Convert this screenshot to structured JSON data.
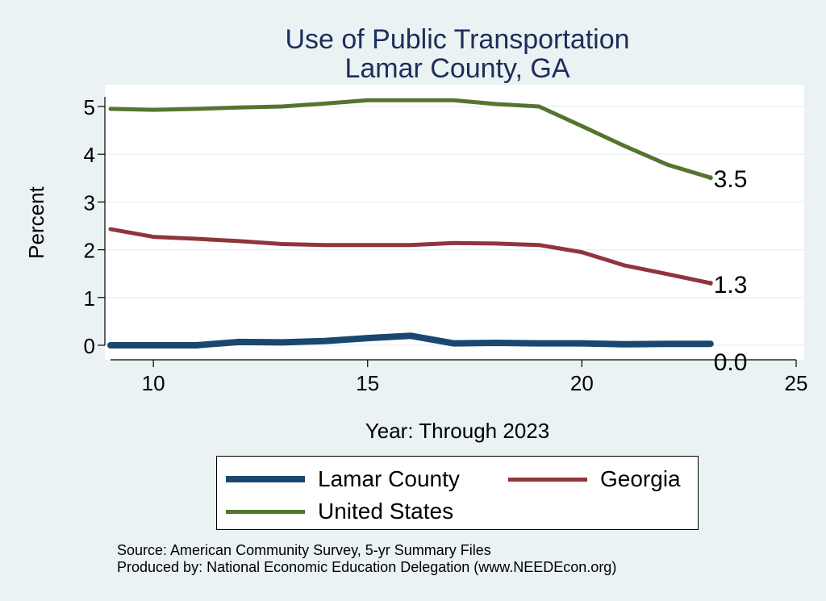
{
  "chart_data": {
    "type": "line",
    "title": "Use of Public Transportation",
    "subtitle": "Lamar County, GA",
    "xlabel": "Year: Through 2023",
    "ylabel": "Percent",
    "xlim": [
      9,
      25
    ],
    "ylim": [
      0,
      5.2
    ],
    "xticks": [
      10,
      15,
      20,
      25
    ],
    "yticks": [
      0,
      1,
      2,
      3,
      4,
      5
    ],
    "grid": true,
    "legend_position": "bottom",
    "x": [
      9,
      10,
      11,
      12,
      13,
      14,
      15,
      16,
      17,
      18,
      19,
      20,
      21,
      22,
      23
    ],
    "series": [
      {
        "name": "Lamar County",
        "color": "#1a476f",
        "values": [
          0.0,
          0.0,
          0.0,
          0.07,
          0.06,
          0.09,
          0.15,
          0.2,
          0.04,
          0.05,
          0.04,
          0.04,
          0.02,
          0.03,
          0.03
        ],
        "end_label": "0.0"
      },
      {
        "name": "Georgia",
        "color": "#90353b",
        "values": [
          2.43,
          2.27,
          2.23,
          2.18,
          2.12,
          2.1,
          2.1,
          2.1,
          2.14,
          2.13,
          2.1,
          1.95,
          1.67,
          1.49,
          1.3
        ],
        "end_label": "1.3"
      },
      {
        "name": "United States",
        "color": "#55752f",
        "values": [
          4.95,
          4.93,
          4.95,
          4.98,
          5.0,
          5.06,
          5.13,
          5.13,
          5.13,
          5.05,
          5.0,
          4.59,
          4.17,
          3.78,
          3.51
        ],
        "end_label": "3.5"
      }
    ]
  },
  "footer": {
    "source": "Source: American Community Survey, 5-yr Summary Files",
    "produced_by": "Produced by: National Economic Education Delegation (www.NEEDEcon.org)"
  }
}
